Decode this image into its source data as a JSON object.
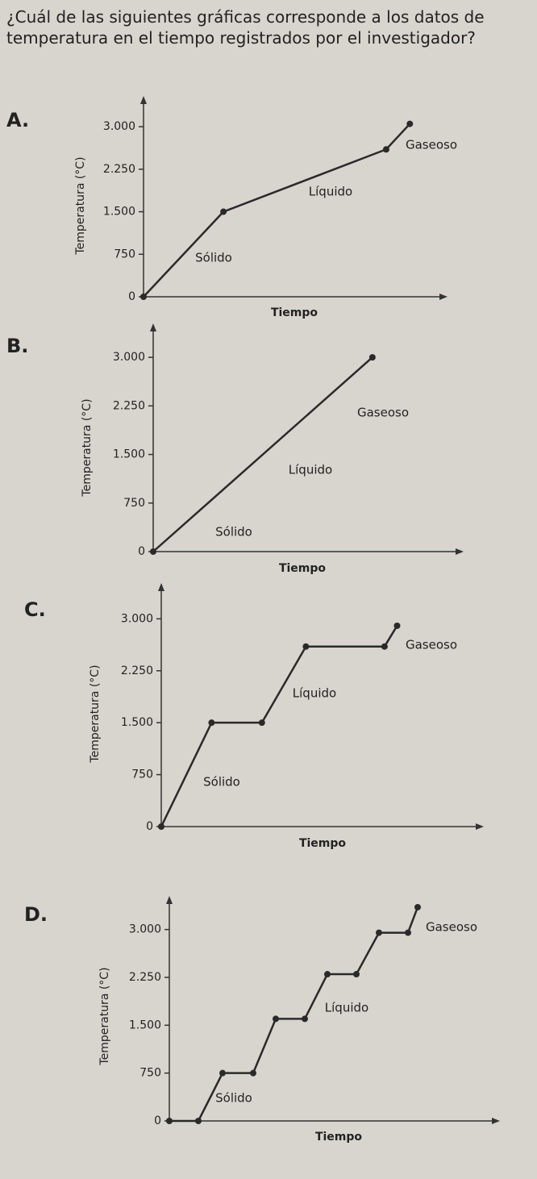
{
  "question": "¿Cuál de las siguientes gráficas corresponde a los datos de temperatura en el tiempo registrados por el investigador?",
  "chart_data": [
    {
      "type": "line",
      "title": "A.",
      "ylabel": "Temperatura (°C)",
      "xlabel": "Tiempo",
      "annotations": [
        "Sólido",
        "Líquido",
        "Gaseoso"
      ],
      "x": [
        0,
        2.7,
        8.2,
        9.0
      ],
      "xlim": [
        0,
        10
      ],
      "series": [
        {
          "color": "#2a2a2a",
          "values": [
            0,
            1500,
            2600,
            3050
          ]
        }
      ],
      "ylim": [
        0,
        3400
      ],
      "yticks": [
        0,
        750,
        {
          "value": 1500,
          "label": "1.500"
        },
        {
          "value": 2250,
          "label": "2.250"
        },
        {
          "value": 3000,
          "label": "3.000"
        }
      ]
    },
    {
      "type": "line",
      "title": "B.",
      "ylabel": "Temperatura (°C)",
      "xlabel": "Tiempo",
      "annotations": [
        "Sólido",
        "Líquido",
        "Gaseoso"
      ],
      "x": [
        0,
        7.25
      ],
      "xlim": [
        0,
        10
      ],
      "series": [
        {
          "color": "#2a2a2a",
          "values": [
            0,
            3000
          ]
        }
      ],
      "ylim": [
        0,
        3400
      ],
      "yticks": [
        0,
        750,
        {
          "value": 1500,
          "label": "1.500"
        },
        {
          "value": 2250,
          "label": "2.250"
        },
        {
          "value": 3000,
          "label": "3.000"
        }
      ]
    },
    {
      "type": "line",
      "title": "C.",
      "ylabel": "Temperatura (°C)",
      "xlabel": "Tiempo",
      "annotations": [
        "Sólido",
        "Líquido",
        "Gaseoso"
      ],
      "x": [
        0,
        1.6,
        3.2,
        4.6,
        7.1,
        7.5
      ],
      "xlim": [
        0,
        10
      ],
      "series": [
        {
          "color": "#2a2a2a",
          "values": [
            0,
            1500,
            1500,
            2600,
            2600,
            2900
          ]
        }
      ],
      "ylim": [
        0,
        3400
      ],
      "yticks": [
        0,
        750,
        {
          "value": 1500,
          "label": "1.500"
        },
        {
          "value": 2250,
          "label": "2.250"
        },
        {
          "value": 3000,
          "label": "3.000"
        }
      ]
    },
    {
      "type": "line",
      "title": "D.",
      "ylabel": "Temperatura (°C)",
      "xlabel": "Tiempo",
      "annotations": [
        "Sólido",
        "Líquido",
        "Gaseoso"
      ],
      "x": [
        0,
        0.9,
        1.65,
        2.6,
        3.3,
        4.2,
        4.9,
        5.8,
        6.5,
        7.4,
        7.7
      ],
      "xlim": [
        0,
        10
      ],
      "series": [
        {
          "color": "#2a2a2a",
          "values": [
            0,
            0,
            750,
            750,
            1600,
            1600,
            2300,
            2300,
            2950,
            2950,
            3350
          ]
        }
      ],
      "ylim": [
        0,
        3400
      ],
      "yticks": [
        0,
        750,
        {
          "value": 1500,
          "label": "1.500"
        },
        {
          "value": 2250,
          "label": "2.250"
        },
        {
          "value": 3000,
          "label": "3.000"
        }
      ]
    }
  ]
}
